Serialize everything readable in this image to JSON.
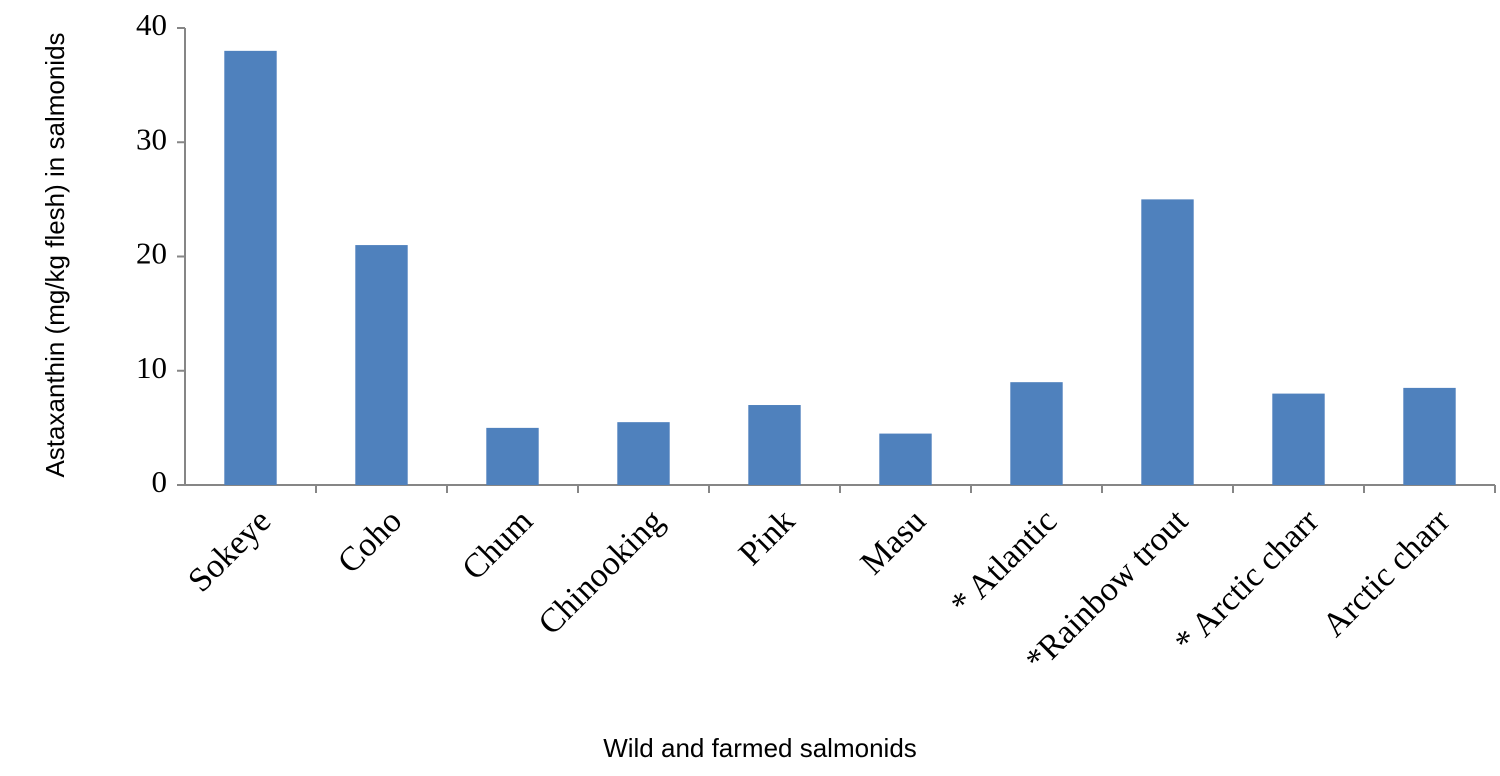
{
  "chart_data": {
    "type": "bar",
    "categories": [
      "Sokeye",
      "Coho",
      "Chum",
      "Chinooking",
      "Pink",
      "Masu",
      "* Atlantic",
      "*Rainbow trout",
      "* Arctic charr",
      "Arctic charr"
    ],
    "values": [
      38,
      21,
      5,
      5.5,
      7,
      4.5,
      9,
      25,
      8,
      8.5
    ],
    "color": "#4f81bd",
    "ylim": [
      0,
      40
    ],
    "yticks": [
      0,
      10,
      20,
      30,
      40
    ],
    "xlabel": "Wild and farmed salmonids",
    "ylabel": "Astaxanthin (mg/kg flesh) in salmonids",
    "grid": false
  }
}
